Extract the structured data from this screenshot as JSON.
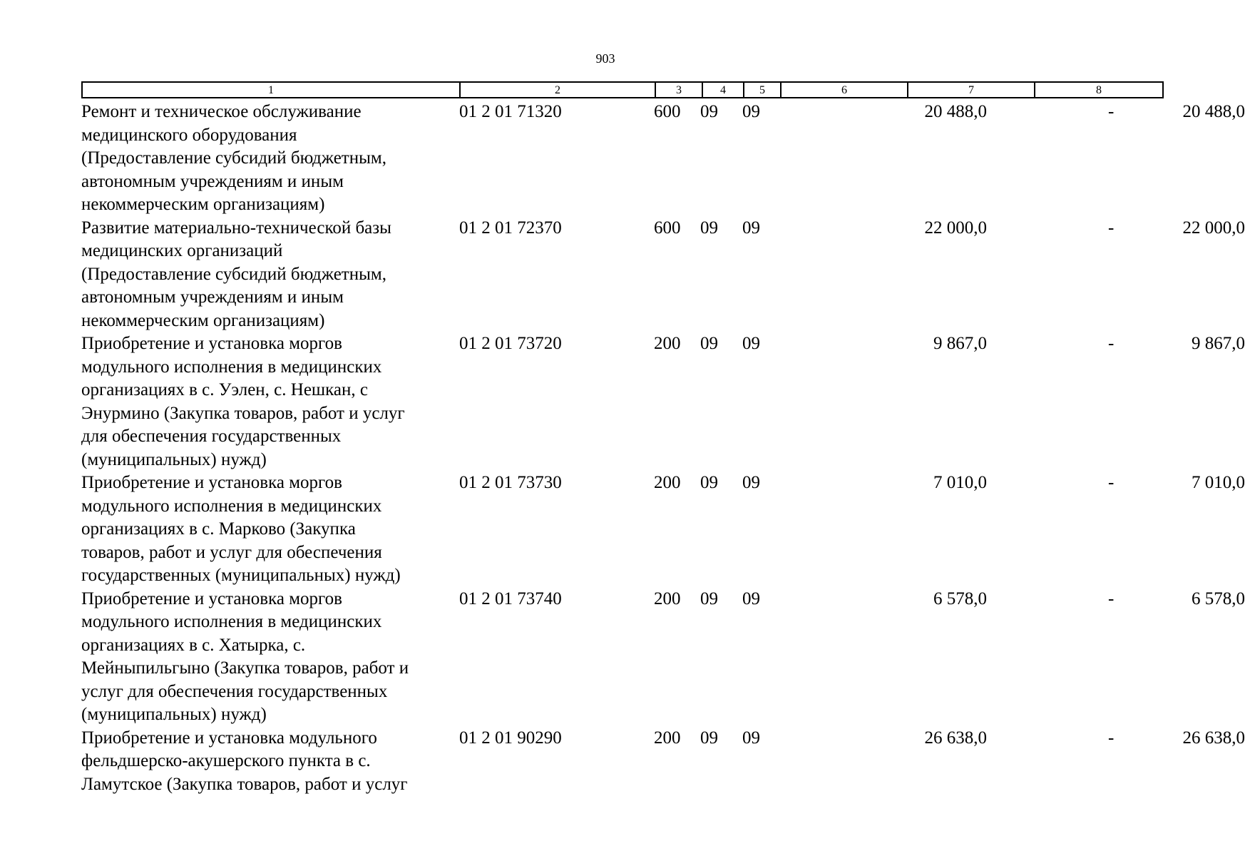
{
  "page": {
    "number": "903"
  },
  "table": {
    "header": [
      "1",
      "2",
      "3",
      "4",
      "5",
      "6",
      "7",
      "8"
    ],
    "rows": [
      {
        "description": "Ремонт и техническое обслуживание\nмедицинского оборудования\n(Предоставление субсидий бюджетным,\nавтономным учреждениям и иным\nнекоммерческим организациям)",
        "code": "01 2 01 71320",
        "c3": "600",
        "c4": "09",
        "c5": "09",
        "c6": "20 488,0",
        "c7": "-",
        "c8": "20 488,0"
      },
      {
        "description": "Развитие материально-технической базы\nмедицинских организаций\n(Предоставление субсидий бюджетным,\nавтономным учреждениям и иным\nнекоммерческим организациям)",
        "code": "01 2 01 72370",
        "c3": "600",
        "c4": "09",
        "c5": "09",
        "c6": "22 000,0",
        "c7": "-",
        "c8": "22 000,0"
      },
      {
        "description": "Приобретение и установка моргов\nмодульного исполнения в медицинских\nорганизациях в с. Уэлен, с. Нешкан, с\nЭнурмино (Закупка товаров, работ и услуг\nдля обеспечения государственных\n(муниципальных) нужд)",
        "code": "01 2 01 73720",
        "c3": "200",
        "c4": "09",
        "c5": "09",
        "c6": "9 867,0",
        "c7": "-",
        "c8": "9 867,0"
      },
      {
        "description": "Приобретение и установка моргов\nмодульного исполнения в медицинских\nорганизациях в с. Марково (Закупка\nтоваров, работ и услуг для обеспечения\nгосударственных (муниципальных) нужд)",
        "code": "01 2 01 73730",
        "c3": "200",
        "c4": "09",
        "c5": "09",
        "c6": "7 010,0",
        "c7": "-",
        "c8": "7 010,0"
      },
      {
        "description": "Приобретение и установка моргов\nмодульного исполнения в медицинских\nорганизациях в с. Хатырка, с.\nМейныпильгыно (Закупка товаров, работ и\nуслуг для обеспечения государственных\n(муниципальных) нужд)",
        "code": "01 2 01 73740",
        "c3": "200",
        "c4": "09",
        "c5": "09",
        "c6": "6 578,0",
        "c7": "-",
        "c8": "6 578,0"
      },
      {
        "description": "Приобретение и установка модульного\nфельдшерско-акушерского пункта в с.\nЛамутское (Закупка товаров, работ и услуг",
        "code": "01 2 01 90290",
        "c3": "200",
        "c4": "09",
        "c5": "09",
        "c6": "26 638,0",
        "c7": "-",
        "c8": "26 638,0"
      }
    ]
  }
}
